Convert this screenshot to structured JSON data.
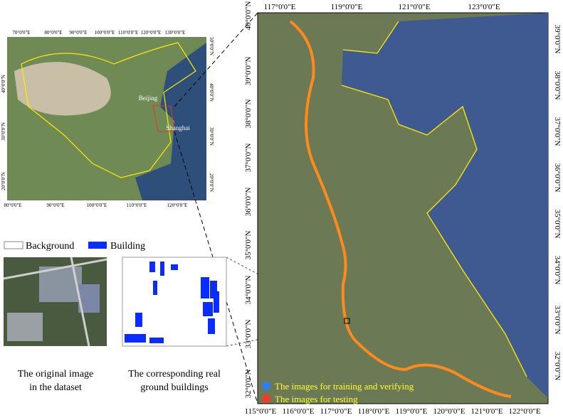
{
  "overview_map": {
    "top_labels": [
      "70°0'0\"E",
      "80°0'0\"E",
      "90°0'0\"E",
      "100°0'0\"E",
      "110°0'0\"E",
      "120°0'0\"E",
      "130°0'0\"E"
    ],
    "bottom_labels": [
      "80°0'0\"E",
      "90°0'0\"E",
      "100°0'0\"E",
      "110°0'0\"E",
      "120°0'0\"E"
    ],
    "left_labels": [
      "40°0'0\"N",
      "30°0'0\"N",
      "20°0'0\"N"
    ],
    "right_labels": [
      "50°0'0\"N",
      "40°0'0\"N",
      "30°0'0\"N",
      "20°0'0\"N"
    ],
    "cities": [
      "Beijing",
      "Shanghai"
    ]
  },
  "building_legend": {
    "items": [
      "Background",
      "Building"
    ]
  },
  "captions": {
    "original": [
      "The original image",
      "in the dataset"
    ],
    "ground_truth": [
      "The corresponding real",
      "ground buildings"
    ]
  },
  "main_map": {
    "top_labels": [
      "117°0'0\"E",
      "119°0'0\"E",
      "121°0'0\"E",
      "123°0'0\"E"
    ],
    "bottom_labels": [
      "115°0'0\"E",
      "116°0'0\"E",
      "117°0'0\"E",
      "118°0'0\"E",
      "119°0'0\"E",
      "120°0'0\"E",
      "121°0'0\"E",
      "122°0'0\"E"
    ],
    "left_labels": [
      "40°0'0\"N",
      "39°0'0\"N",
      "38°0'0\"N",
      "37°0'0\"N",
      "36°0'0\"N",
      "35°0'0\"N",
      "34°0'0\"N",
      "33°0'0\"N",
      "32°0'0\"N"
    ],
    "right_labels": [
      "39°0'0\"N",
      "38°0'0\"N",
      "37°0'0\"N",
      "36°0'0\"N",
      "35°0'0\"N",
      "34°0'0\"N",
      "33°0'0\"N",
      "32°0'0\"N"
    ],
    "legend": [
      "The images for training and verifying",
      "The images for testing"
    ]
  }
}
